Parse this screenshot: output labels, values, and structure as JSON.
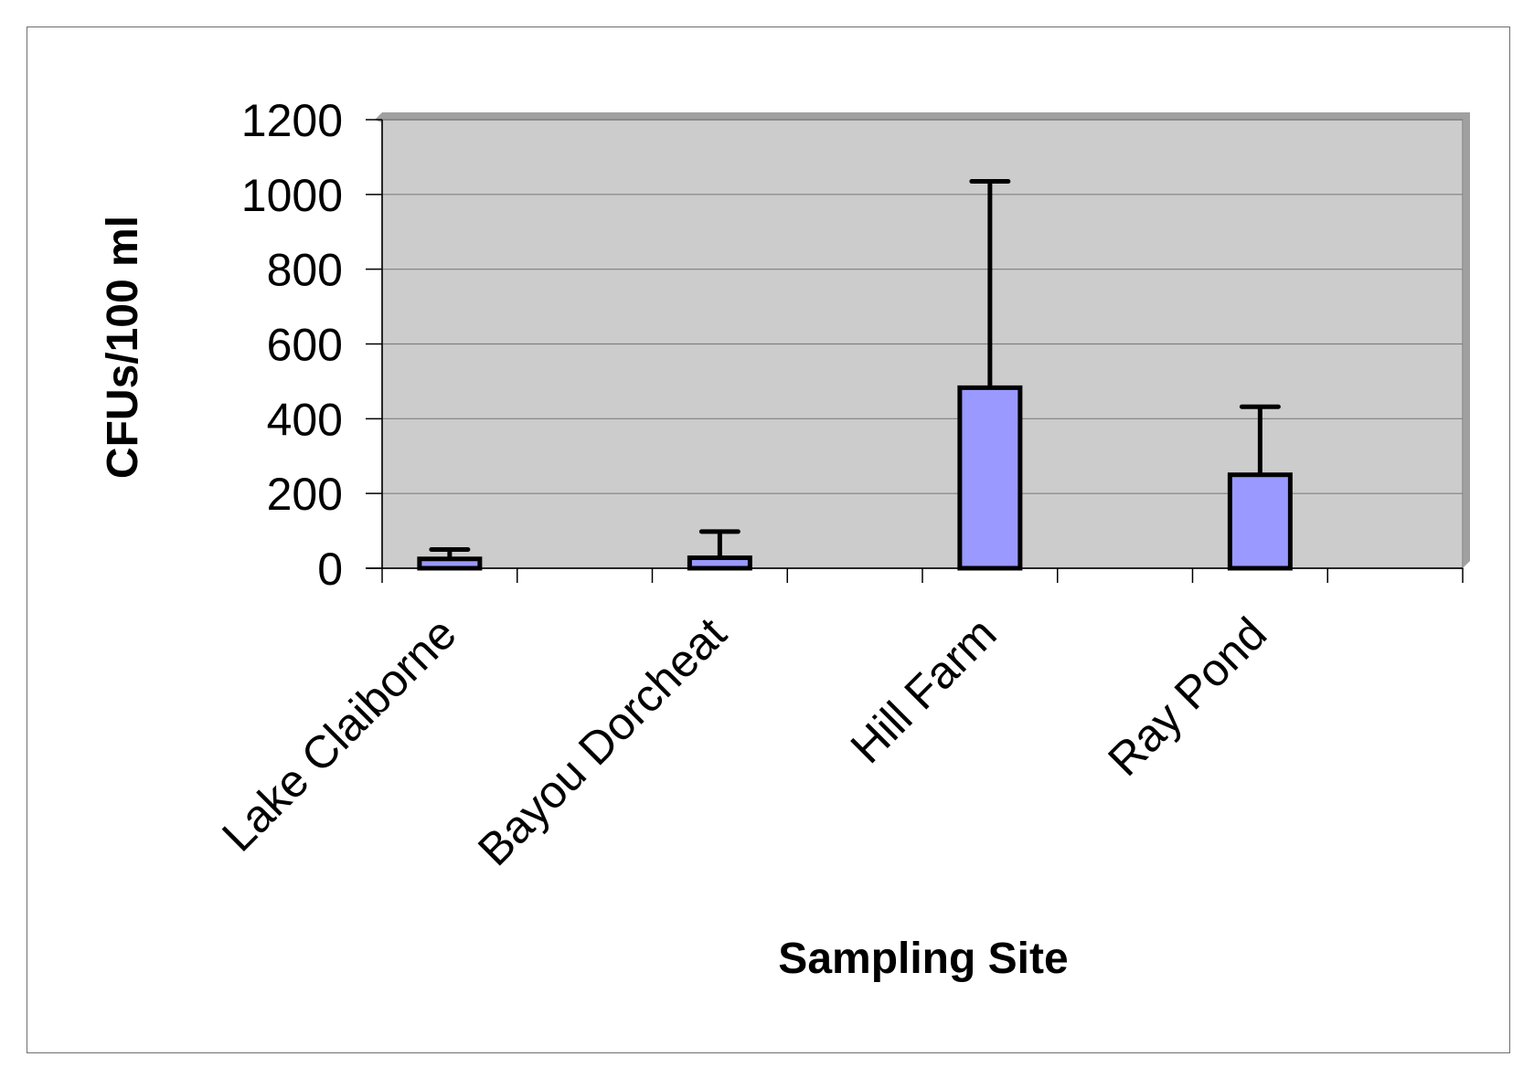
{
  "chart_data": {
    "type": "bar",
    "title": "",
    "xlabel": "Sampling Site",
    "ylabel": "CFUs/100 ml",
    "categories": [
      "Lake Claiborne",
      "Bayou Dorcheat",
      "Hill Farm",
      "Ray Pond"
    ],
    "values": [
      25,
      28,
      483,
      250
    ],
    "error_upper": [
      50,
      98,
      1035,
      432
    ],
    "ylim": [
      0,
      1200
    ],
    "yticks": [
      "0",
      "200",
      "400",
      "600",
      "800",
      "1000",
      "1200"
    ],
    "grid": true,
    "legend": "none",
    "colors": {
      "bar": "#9999ff",
      "plot_area": "#cccccc",
      "grid": "#808080",
      "edge": "#000000"
    }
  }
}
